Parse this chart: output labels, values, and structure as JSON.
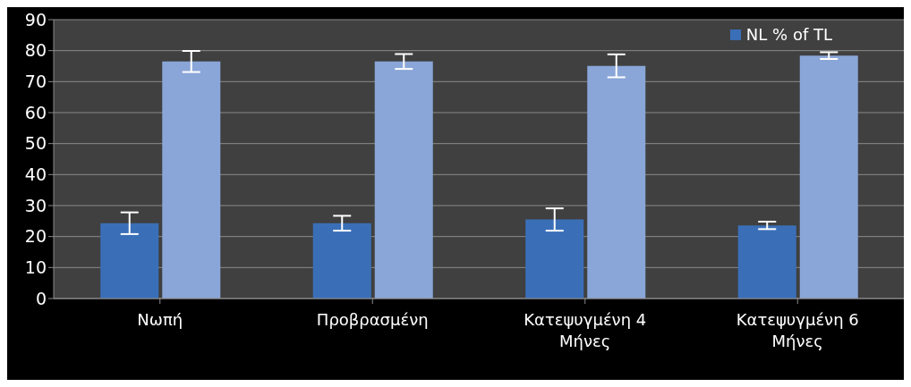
{
  "chart_data": {
    "type": "bar",
    "categories": [
      "Νωπή",
      "Προβρασμένη",
      "Κατεψυγμένη 4 Μήνες",
      "Κατεψυγμένη 6 Μήνες"
    ],
    "series": [
      {
        "name": "NL % of TL",
        "color": "#3a6fb8",
        "values": [
          24.3,
          24.3,
          25.5,
          23.6
        ],
        "errors": [
          3.5,
          2.4,
          3.6,
          1.2
        ]
      },
      {
        "color": "#8aa6d8",
        "values": [
          76.5,
          76.5,
          75.1,
          78.4
        ],
        "errors": [
          3.4,
          2.4,
          3.7,
          1.1
        ]
      }
    ],
    "ylim": [
      0,
      90
    ],
    "yticks": [
      0,
      10,
      20,
      30,
      40,
      50,
      60,
      70,
      80,
      90
    ],
    "grid": "y",
    "legend": "top right"
  }
}
